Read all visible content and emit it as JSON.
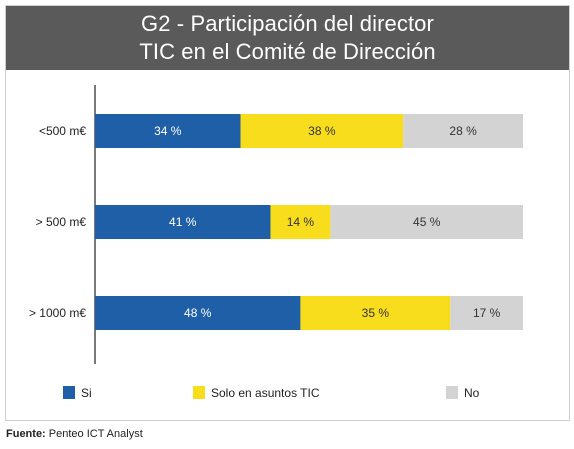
{
  "header": {
    "title_line1": "G2 - Participación del director",
    "title_line2": "TIC en el Comité de Dirección"
  },
  "chart_data": {
    "type": "bar",
    "orientation": "horizontal",
    "stacked": true,
    "categories": [
      "<500 m€",
      "> 500 m€",
      "> 1000 m€"
    ],
    "value_suffix": " %",
    "series": [
      {
        "name": "Si",
        "values": [
          34,
          41,
          48
        ],
        "color": "#1f5fa8",
        "label_color": "#ffffff"
      },
      {
        "name": "Solo en asuntos TIC",
        "values": [
          38,
          14,
          35
        ],
        "color": "#f7dd1c",
        "label_color": "#333333"
      },
      {
        "name": "No",
        "values": [
          28,
          45,
          17
        ],
        "color": "#d3d3d3",
        "label_color": "#333333"
      }
    ],
    "xlim": [
      0,
      100
    ],
    "grid": false,
    "legend_position": "bottom"
  },
  "footer": {
    "source_label": "Fuente:",
    "source_text": " Penteo ICT Analyst"
  }
}
